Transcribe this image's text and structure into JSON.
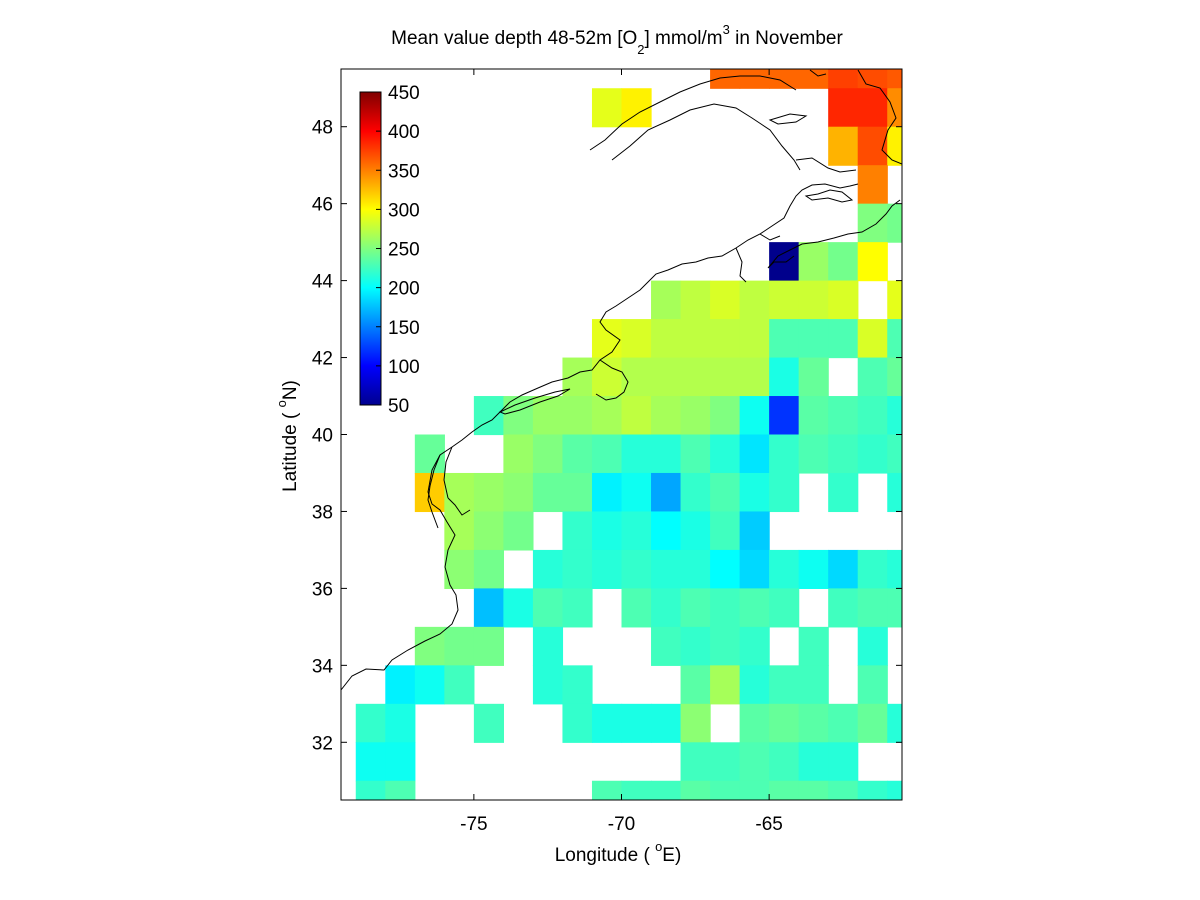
{
  "chart_data": {
    "type": "heatmap",
    "title": {
      "part1": "Mean value depth 48-52m [O",
      "sub": "2",
      "part2": "] mmol/m",
      "sup": "3",
      "part3": " in November"
    },
    "xlabel": {
      "pre": "Longitude ( ",
      "sup": "o",
      "post": "E)"
    },
    "ylabel": {
      "pre": "Latitude ( ",
      "sup": "o",
      "post": "N)"
    },
    "xlim": [
      -79.5,
      -60.5
    ],
    "ylim": [
      30.5,
      49.5
    ],
    "xticks": [
      -75,
      -70,
      -65
    ],
    "yticks": [
      32,
      34,
      36,
      38,
      40,
      42,
      44,
      46,
      48
    ],
    "colorbar": {
      "min": 50,
      "max": 450,
      "ticks": [
        450,
        400,
        350,
        300,
        250,
        200,
        150,
        100,
        50
      ],
      "colormap": "jet",
      "placement": "top-left inside axes"
    },
    "cell_size_deg": 1,
    "cells": [
      [
        -71,
        48,
        290
      ],
      [
        -70,
        48,
        305
      ],
      [
        -67,
        49,
        360
      ],
      [
        -66,
        49,
        360
      ],
      [
        -65,
        49,
        360
      ],
      [
        -64,
        49,
        360
      ],
      [
        -63,
        49,
        375
      ],
      [
        -62,
        49,
        370
      ],
      [
        -61,
        49,
        365
      ],
      [
        -63,
        48,
        385
      ],
      [
        -62,
        48,
        385
      ],
      [
        -61,
        48,
        345
      ],
      [
        -63,
        47,
        330
      ],
      [
        -62,
        47,
        370
      ],
      [
        -61,
        47,
        305
      ],
      [
        -62,
        46,
        350
      ],
      [
        -62,
        45,
        250
      ],
      [
        -61,
        45,
        245
      ],
      [
        -65,
        44,
        55
      ],
      [
        -64,
        44,
        260
      ],
      [
        -63,
        44,
        245
      ],
      [
        -62,
        44,
        300
      ],
      [
        -63,
        43,
        290
      ],
      [
        -61,
        43,
        290
      ],
      [
        -69,
        43,
        265
      ],
      [
        -68,
        43,
        275
      ],
      [
        -67,
        43,
        285
      ],
      [
        -66,
        43,
        275
      ],
      [
        -65,
        43,
        280
      ],
      [
        -64,
        43,
        280
      ],
      [
        -63,
        43,
        285
      ],
      [
        -71,
        42,
        290
      ],
      [
        -70,
        42,
        285
      ],
      [
        -69,
        42,
        275
      ],
      [
        -68,
        42,
        275
      ],
      [
        -67,
        42,
        275
      ],
      [
        -66,
        42,
        275
      ],
      [
        -65,
        42,
        230
      ],
      [
        -64,
        42,
        230
      ],
      [
        -63,
        42,
        230
      ],
      [
        -62,
        42,
        285
      ],
      [
        -61,
        42,
        230
      ],
      [
        -72,
        41,
        265
      ],
      [
        -71,
        41,
        280
      ],
      [
        -70,
        41,
        270
      ],
      [
        -69,
        41,
        270
      ],
      [
        -68,
        41,
        270
      ],
      [
        -67,
        41,
        270
      ],
      [
        -66,
        41,
        270
      ],
      [
        -65,
        41,
        210
      ],
      [
        -64,
        41,
        240
      ],
      [
        -62,
        41,
        230
      ],
      [
        -61,
        41,
        240
      ],
      [
        -75,
        40,
        225
      ],
      [
        -74,
        40,
        250
      ],
      [
        -73,
        40,
        260
      ],
      [
        -72,
        40,
        260
      ],
      [
        -71,
        40,
        265
      ],
      [
        -70,
        40,
        275
      ],
      [
        -69,
        40,
        265
      ],
      [
        -68,
        40,
        260
      ],
      [
        -67,
        40,
        250
      ],
      [
        -66,
        40,
        205
      ],
      [
        -65,
        40,
        120
      ],
      [
        -64,
        40,
        235
      ],
      [
        -63,
        40,
        230
      ],
      [
        -62,
        40,
        225
      ],
      [
        -61,
        40,
        215
      ],
      [
        -77,
        39,
        240
      ],
      [
        -74,
        39,
        260
      ],
      [
        -73,
        39,
        250
      ],
      [
        -72,
        39,
        235
      ],
      [
        -71,
        39,
        230
      ],
      [
        -70,
        39,
        215
      ],
      [
        -69,
        39,
        215
      ],
      [
        -68,
        39,
        230
      ],
      [
        -67,
        39,
        215
      ],
      [
        -66,
        39,
        190
      ],
      [
        -65,
        39,
        220
      ],
      [
        -64,
        39,
        230
      ],
      [
        -63,
        39,
        225
      ],
      [
        -62,
        39,
        220
      ],
      [
        -61,
        39,
        225
      ],
      [
        -77,
        38,
        320
      ],
      [
        -76,
        38,
        265
      ],
      [
        -75,
        38,
        260
      ],
      [
        -74,
        38,
        255
      ],
      [
        -73,
        38,
        240
      ],
      [
        -72,
        38,
        240
      ],
      [
        -71,
        38,
        195
      ],
      [
        -70,
        38,
        205
      ],
      [
        -69,
        38,
        165
      ],
      [
        -68,
        38,
        220
      ],
      [
        -67,
        38,
        230
      ],
      [
        -66,
        38,
        210
      ],
      [
        -65,
        38,
        220
      ],
      [
        -63,
        38,
        220
      ],
      [
        -61,
        38,
        215
      ],
      [
        -76,
        37,
        265
      ],
      [
        -75,
        37,
        255
      ],
      [
        -74,
        37,
        245
      ],
      [
        -72,
        37,
        220
      ],
      [
        -71,
        37,
        210
      ],
      [
        -70,
        37,
        215
      ],
      [
        -69,
        37,
        200
      ],
      [
        -68,
        37,
        210
      ],
      [
        -67,
        37,
        225
      ],
      [
        -66,
        37,
        180
      ],
      [
        -76,
        36,
        255
      ],
      [
        -75,
        36,
        245
      ],
      [
        -73,
        36,
        215
      ],
      [
        -72,
        36,
        220
      ],
      [
        -71,
        36,
        215
      ],
      [
        -70,
        36,
        220
      ],
      [
        -69,
        36,
        215
      ],
      [
        -68,
        36,
        215
      ],
      [
        -67,
        36,
        200
      ],
      [
        -66,
        36,
        185
      ],
      [
        -65,
        36,
        215
      ],
      [
        -64,
        36,
        205
      ],
      [
        -63,
        36,
        185
      ],
      [
        -62,
        36,
        220
      ],
      [
        -61,
        36,
        215
      ],
      [
        -75,
        35,
        175
      ],
      [
        -74,
        35,
        210
      ],
      [
        -73,
        35,
        230
      ],
      [
        -72,
        35,
        225
      ],
      [
        -70,
        35,
        230
      ],
      [
        -69,
        35,
        220
      ],
      [
        -68,
        35,
        230
      ],
      [
        -67,
        35,
        225
      ],
      [
        -66,
        35,
        230
      ],
      [
        -65,
        35,
        225
      ],
      [
        -63,
        35,
        225
      ],
      [
        -62,
        35,
        230
      ],
      [
        -61,
        35,
        230
      ],
      [
        -77,
        34,
        250
      ],
      [
        -76,
        34,
        245
      ],
      [
        -75,
        34,
        245
      ],
      [
        -73,
        34,
        215
      ],
      [
        -69,
        34,
        225
      ],
      [
        -68,
        34,
        220
      ],
      [
        -67,
        34,
        225
      ],
      [
        -66,
        34,
        220
      ],
      [
        -64,
        34,
        225
      ],
      [
        -62,
        34,
        215
      ],
      [
        -78,
        33,
        195
      ],
      [
        -77,
        33,
        205
      ],
      [
        -76,
        33,
        225
      ],
      [
        -73,
        33,
        215
      ],
      [
        -72,
        33,
        220
      ],
      [
        -68,
        33,
        235
      ],
      [
        -67,
        33,
        265
      ],
      [
        -66,
        33,
        215
      ],
      [
        -65,
        33,
        225
      ],
      [
        -64,
        33,
        225
      ],
      [
        -62,
        33,
        230
      ],
      [
        -79,
        32,
        220
      ],
      [
        -78,
        32,
        210
      ],
      [
        -75,
        32,
        225
      ],
      [
        -72,
        32,
        220
      ],
      [
        -71,
        32,
        210
      ],
      [
        -70,
        32,
        210
      ],
      [
        -69,
        32,
        210
      ],
      [
        -68,
        32,
        255
      ],
      [
        -66,
        32,
        235
      ],
      [
        -65,
        32,
        240
      ],
      [
        -64,
        32,
        235
      ],
      [
        -63,
        32,
        230
      ],
      [
        -62,
        32,
        240
      ],
      [
        -61,
        32,
        215
      ],
      [
        -79,
        31,
        205
      ],
      [
        -78,
        31,
        205
      ],
      [
        -68,
        31,
        225
      ],
      [
        -67,
        31,
        225
      ],
      [
        -66,
        31,
        230
      ],
      [
        -65,
        31,
        225
      ],
      [
        -64,
        31,
        215
      ],
      [
        -63,
        31,
        215
      ],
      [
        -79,
        30,
        220
      ],
      [
        -78,
        30,
        230
      ],
      [
        -71,
        30,
        230
      ],
      [
        -70,
        30,
        225
      ],
      [
        -69,
        30,
        225
      ],
      [
        -68,
        30,
        235
      ],
      [
        -67,
        30,
        230
      ],
      [
        -66,
        30,
        230
      ],
      [
        -65,
        30,
        235
      ],
      [
        -64,
        30,
        235
      ],
      [
        -63,
        30,
        230
      ],
      [
        -62,
        30,
        220
      ],
      [
        -61,
        30,
        215
      ]
    ]
  }
}
